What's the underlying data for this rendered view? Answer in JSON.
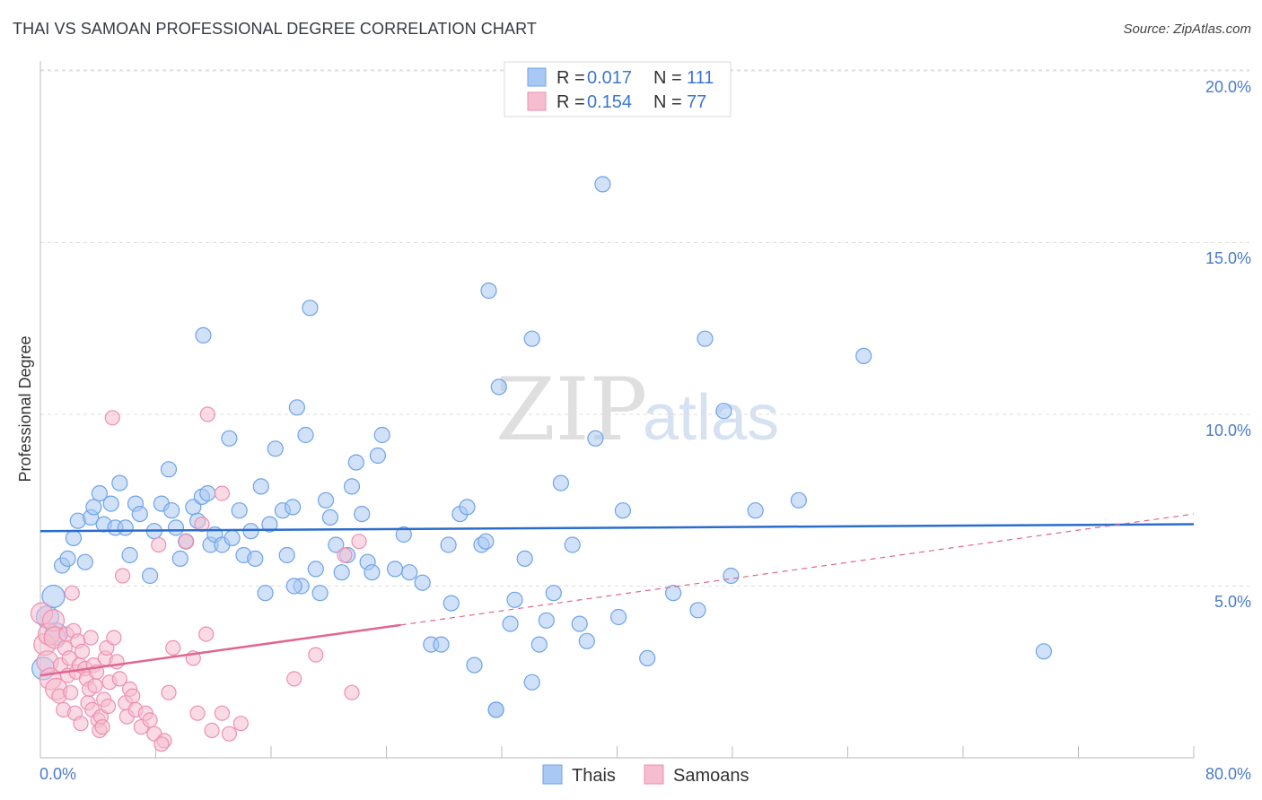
{
  "header": {
    "title": "THAI VS SAMOAN PROFESSIONAL DEGREE CORRELATION CHART",
    "source": "Source: ZipAtlas.com"
  },
  "watermark": {
    "zip": "ZIP",
    "atlas": "atlas"
  },
  "colors": {
    "thai": "#6ea3ea",
    "thai_fill": "#a9c8f3",
    "thai_line": "#2a6dcc",
    "samoan": "#ee8fae",
    "samoan_fill": "#f6bdd0",
    "samoan_line": "#e0668f",
    "tick": "#4a7ac9",
    "grid": "#dddddd"
  },
  "legend": {
    "rows": [
      {
        "r_label": "R = ",
        "r_value": "0.017",
        "n_label": "N = ",
        "n_value": "111"
      },
      {
        "r_label": "R = ",
        "r_value": "0.154",
        "n_label": "N = ",
        "n_value": "77"
      }
    ],
    "bottom": [
      "Thais",
      "Samoans"
    ]
  },
  "chart_data": {
    "type": "scatter",
    "title": "THAI VS SAMOAN PROFESSIONAL DEGREE CORRELATION CHART",
    "xlabel": "",
    "ylabel": "Professional Degree",
    "xlim": [
      0,
      80
    ],
    "ylim": [
      0,
      20.5
    ],
    "x_tick_labels": [
      "0.0%",
      "80.0%"
    ],
    "y_ticks": [
      5,
      10,
      15,
      20
    ],
    "y_tick_labels": [
      "5.0%",
      "10.0%",
      "15.0%",
      "20.0%"
    ],
    "grid": true,
    "series": [
      {
        "name": "Thais",
        "r": 0.017,
        "n": 111,
        "trend": {
          "x": [
            0,
            80
          ],
          "y": [
            6.6,
            6.8
          ],
          "style": "solid"
        },
        "points": [
          [
            0.2,
            2.6
          ],
          [
            0.5,
            4.1
          ],
          [
            0.9,
            4.7
          ],
          [
            1.1,
            3.6
          ],
          [
            1.5,
            5.6
          ],
          [
            1.9,
            5.8
          ],
          [
            2.3,
            6.4
          ],
          [
            2.6,
            6.9
          ],
          [
            3.1,
            5.7
          ],
          [
            3.5,
            7.0
          ],
          [
            3.7,
            7.3
          ],
          [
            4.1,
            7.7
          ],
          [
            4.4,
            6.8
          ],
          [
            4.9,
            7.4
          ],
          [
            5.2,
            6.7
          ],
          [
            5.5,
            8.0
          ],
          [
            5.9,
            6.7
          ],
          [
            6.2,
            5.9
          ],
          [
            6.6,
            7.4
          ],
          [
            6.9,
            7.1
          ],
          [
            7.6,
            5.3
          ],
          [
            7.9,
            6.6
          ],
          [
            8.4,
            7.4
          ],
          [
            8.9,
            8.4
          ],
          [
            9.1,
            7.2
          ],
          [
            9.4,
            6.7
          ],
          [
            9.7,
            5.8
          ],
          [
            10.1,
            6.3
          ],
          [
            10.6,
            7.3
          ],
          [
            10.9,
            6.9
          ],
          [
            11.2,
            7.6
          ],
          [
            11.6,
            7.7
          ],
          [
            11.8,
            6.2
          ],
          [
            12.1,
            6.5
          ],
          [
            12.6,
            6.2
          ],
          [
            13.1,
            9.3
          ],
          [
            13.3,
            6.4
          ],
          [
            13.8,
            7.2
          ],
          [
            14.1,
            5.9
          ],
          [
            14.6,
            6.6
          ],
          [
            14.9,
            5.8
          ],
          [
            15.3,
            7.9
          ],
          [
            15.6,
            4.8
          ],
          [
            15.9,
            6.8
          ],
          [
            16.3,
            9.0
          ],
          [
            16.8,
            7.2
          ],
          [
            17.1,
            5.9
          ],
          [
            17.5,
            7.3
          ],
          [
            17.8,
            10.2
          ],
          [
            18.1,
            5.0
          ],
          [
            18.4,
            9.4
          ],
          [
            18.7,
            13.1
          ],
          [
            19.1,
            5.5
          ],
          [
            19.4,
            4.8
          ],
          [
            19.8,
            7.5
          ],
          [
            20.1,
            7.0
          ],
          [
            20.5,
            6.2
          ],
          [
            20.9,
            5.4
          ],
          [
            21.3,
            5.9
          ],
          [
            21.6,
            7.9
          ],
          [
            21.9,
            8.6
          ],
          [
            22.3,
            7.1
          ],
          [
            22.7,
            5.7
          ],
          [
            23.0,
            5.4
          ],
          [
            23.4,
            8.8
          ],
          [
            23.7,
            9.4
          ],
          [
            24.6,
            5.5
          ],
          [
            25.2,
            6.5
          ],
          [
            25.6,
            5.4
          ],
          [
            26.5,
            5.1
          ],
          [
            27.1,
            3.3
          ],
          [
            27.8,
            3.3
          ],
          [
            28.3,
            6.2
          ],
          [
            28.5,
            4.5
          ],
          [
            29.1,
            7.1
          ],
          [
            29.6,
            7.3
          ],
          [
            30.1,
            2.7
          ],
          [
            30.6,
            6.2
          ],
          [
            30.9,
            6.3
          ],
          [
            31.1,
            13.6
          ],
          [
            31.6,
            1.4
          ],
          [
            31.8,
            10.8
          ],
          [
            32.6,
            3.9
          ],
          [
            32.9,
            4.6
          ],
          [
            33.6,
            5.8
          ],
          [
            34.1,
            2.2
          ],
          [
            34.6,
            3.3
          ],
          [
            35.1,
            4.0
          ],
          [
            35.6,
            4.8
          ],
          [
            36.1,
            8.0
          ],
          [
            36.9,
            6.2
          ],
          [
            37.4,
            3.9
          ],
          [
            37.9,
            3.4
          ],
          [
            38.5,
            9.3
          ],
          [
            39.0,
            16.7
          ],
          [
            40.1,
            4.1
          ],
          [
            40.4,
            7.2
          ],
          [
            42.1,
            2.9
          ],
          [
            43.9,
            4.8
          ],
          [
            45.6,
            4.3
          ],
          [
            46.1,
            12.2
          ],
          [
            47.4,
            10.1
          ],
          [
            47.9,
            5.3
          ],
          [
            49.6,
            7.2
          ],
          [
            52.6,
            7.5
          ],
          [
            57.1,
            11.7
          ],
          [
            69.6,
            3.1
          ],
          [
            31.6,
            1.4
          ],
          [
            34.1,
            12.2
          ],
          [
            17.6,
            5.0
          ],
          [
            11.3,
            12.3
          ]
        ]
      },
      {
        "name": "Samoans",
        "r": 0.154,
        "n": 77,
        "trend": {
          "x": [
            0,
            80
          ],
          "y": [
            2.4,
            7.1
          ],
          "solid_until": 25
        },
        "points": [
          [
            0.1,
            4.2
          ],
          [
            0.3,
            3.3
          ],
          [
            0.5,
            2.8
          ],
          [
            0.6,
            3.6
          ],
          [
            0.7,
            2.3
          ],
          [
            0.9,
            4.0
          ],
          [
            1.0,
            3.5
          ],
          [
            1.1,
            2.0
          ],
          [
            1.3,
            1.8
          ],
          [
            1.4,
            2.7
          ],
          [
            1.6,
            1.4
          ],
          [
            1.7,
            3.2
          ],
          [
            1.8,
            3.6
          ],
          [
            1.9,
            2.4
          ],
          [
            2.0,
            2.9
          ],
          [
            2.1,
            1.9
          ],
          [
            2.2,
            4.8
          ],
          [
            2.3,
            3.7
          ],
          [
            2.4,
            1.3
          ],
          [
            2.5,
            2.5
          ],
          [
            2.6,
            3.4
          ],
          [
            2.7,
            2.7
          ],
          [
            2.8,
            1.0
          ],
          [
            2.9,
            3.1
          ],
          [
            3.1,
            2.6
          ],
          [
            3.2,
            2.3
          ],
          [
            3.3,
            1.6
          ],
          [
            3.4,
            2.0
          ],
          [
            3.5,
            3.5
          ],
          [
            3.6,
            1.4
          ],
          [
            3.7,
            2.7
          ],
          [
            3.8,
            2.1
          ],
          [
            3.9,
            2.5
          ],
          [
            4.0,
            1.1
          ],
          [
            4.1,
            0.8
          ],
          [
            4.2,
            1.2
          ],
          [
            4.3,
            0.9
          ],
          [
            4.4,
            1.7
          ],
          [
            4.5,
            2.9
          ],
          [
            4.6,
            3.2
          ],
          [
            4.7,
            1.5
          ],
          [
            4.8,
            2.2
          ],
          [
            5.0,
            9.9
          ],
          [
            5.1,
            3.5
          ],
          [
            5.3,
            2.8
          ],
          [
            5.5,
            2.3
          ],
          [
            5.7,
            5.3
          ],
          [
            5.9,
            1.6
          ],
          [
            6.0,
            1.2
          ],
          [
            6.2,
            2.0
          ],
          [
            6.4,
            1.8
          ],
          [
            6.6,
            1.4
          ],
          [
            7.0,
            0.9
          ],
          [
            7.3,
            1.3
          ],
          [
            7.6,
            1.1
          ],
          [
            7.9,
            0.7
          ],
          [
            8.2,
            6.2
          ],
          [
            8.6,
            0.5
          ],
          [
            8.9,
            1.9
          ],
          [
            9.2,
            3.2
          ],
          [
            10.1,
            6.3
          ],
          [
            10.6,
            2.9
          ],
          [
            10.9,
            1.3
          ],
          [
            11.2,
            6.8
          ],
          [
            11.5,
            3.6
          ],
          [
            11.9,
            0.8
          ],
          [
            12.6,
            7.7
          ],
          [
            13.1,
            0.7
          ],
          [
            13.9,
            1.0
          ],
          [
            17.6,
            2.3
          ],
          [
            19.1,
            3.0
          ],
          [
            21.1,
            5.9
          ],
          [
            21.6,
            1.9
          ],
          [
            22.1,
            6.3
          ],
          [
            11.6,
            10.0
          ],
          [
            12.6,
            1.3
          ],
          [
            8.4,
            0.4
          ]
        ]
      }
    ]
  }
}
